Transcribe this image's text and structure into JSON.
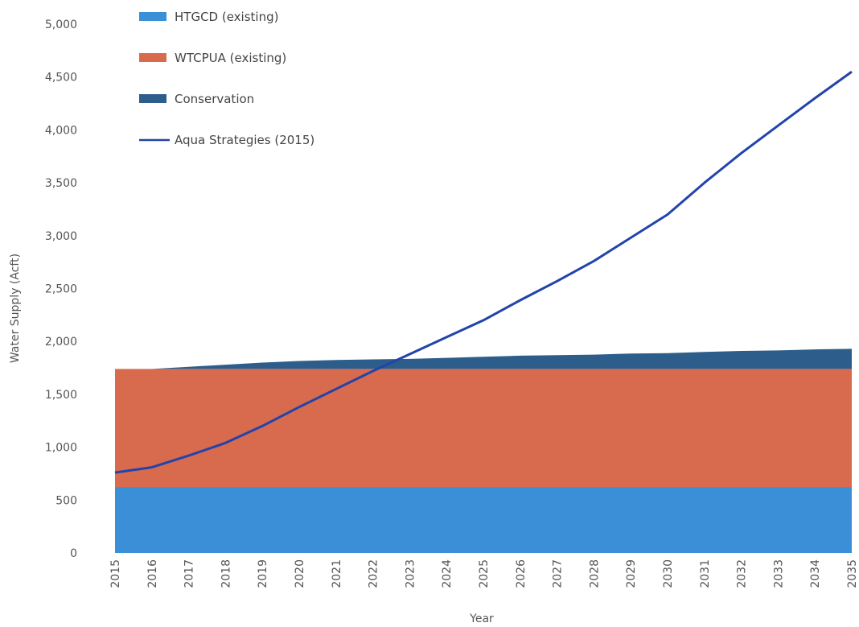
{
  "chart_data": {
    "type": "area",
    "title": "",
    "xlabel": "Year",
    "ylabel": "Water Supply (Acft)",
    "x": [
      2015,
      2016,
      2017,
      2018,
      2019,
      2020,
      2021,
      2022,
      2023,
      2024,
      2025,
      2026,
      2027,
      2028,
      2029,
      2030,
      2031,
      2032,
      2033,
      2034,
      2035
    ],
    "x_tick_labels": [
      "2015",
      "2016",
      "2017",
      "2018",
      "2019",
      "2020",
      "2021",
      "2022",
      "2023",
      "2024",
      "2025",
      "2026",
      "2027",
      "2028",
      "2029",
      "2030",
      "2031",
      "2032",
      "2033",
      "2034",
      "2035"
    ],
    "ylim": [
      0,
      5000
    ],
    "y_ticks": [
      0,
      500,
      1000,
      1500,
      2000,
      2500,
      3000,
      3500,
      4000,
      4500,
      5000
    ],
    "y_tick_labels": [
      "0",
      "500",
      "1,000",
      "1,500",
      "2,000",
      "2,500",
      "3,000",
      "3,500",
      "4,000",
      "4,500",
      "5,000"
    ],
    "stacked_series": [
      {
        "name": "HTGCD (existing)",
        "color": "#3a8fd6",
        "values": [
          620,
          620,
          620,
          620,
          620,
          620,
          620,
          620,
          620,
          620,
          620,
          620,
          620,
          620,
          620,
          620,
          620,
          620,
          620,
          620,
          620
        ]
      },
      {
        "name": "WTCPUA (existing)",
        "color": "#d86a4e",
        "values": [
          1120,
          1120,
          1120,
          1120,
          1120,
          1120,
          1120,
          1120,
          1120,
          1120,
          1120,
          1120,
          1120,
          1120,
          1120,
          1120,
          1120,
          1120,
          1120,
          1120,
          1120
        ]
      },
      {
        "name": "Conservation",
        "color": "#2d5d8a",
        "values": [
          0,
          0,
          20,
          40,
          60,
          75,
          85,
          90,
          95,
          105,
          115,
          125,
          130,
          135,
          145,
          150,
          160,
          170,
          175,
          185,
          190
        ]
      }
    ],
    "line_series": [
      {
        "name": "Aqua Strategies (2015)",
        "color": "#2244aa",
        "values": [
          760,
          810,
          920,
          1040,
          1200,
          1380,
          1550,
          1720,
          1880,
          2040,
          2200,
          2390,
          2570,
          2760,
          2980,
          3200,
          3500,
          3780,
          4040,
          4300,
          4550
        ]
      }
    ],
    "legend": {
      "position": "top-left"
    },
    "grid": false
  }
}
